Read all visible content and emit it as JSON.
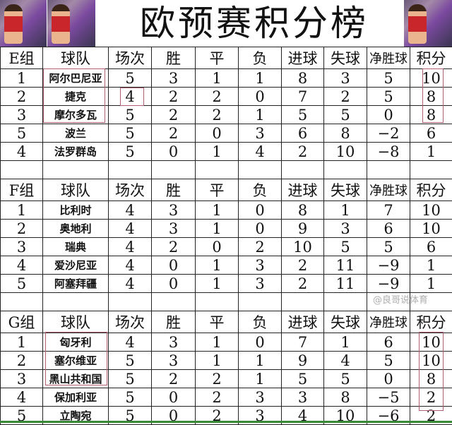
{
  "title": "欧预赛积分榜",
  "headers": [
    "球队",
    "场次",
    "胜",
    "平",
    "负",
    "进球",
    "失球",
    "净胜球",
    "积分"
  ],
  "groups": [
    {
      "name": "E组",
      "rows": [
        [
          "1",
          "阿尔巴尼亚",
          "5",
          "3",
          "1",
          "1",
          "8",
          "3",
          "5",
          "10"
        ],
        [
          "2",
          "捷克",
          "4",
          "2",
          "2",
          "0",
          "7",
          "2",
          "5",
          "8"
        ],
        [
          "3",
          "摩尔多瓦",
          "5",
          "2",
          "2",
          "1",
          "5",
          "5",
          "0",
          "8"
        ],
        [
          "5",
          "波兰",
          "5",
          "2",
          "0",
          "3",
          "6",
          "8",
          "−2",
          "6"
        ],
        [
          "4",
          "法罗群岛",
          "5",
          "0",
          "1",
          "4",
          "2",
          "10",
          "−8",
          "1"
        ]
      ]
    },
    {
      "name": "F组",
      "rows": [
        [
          "1",
          "比利时",
          "4",
          "3",
          "1",
          "0",
          "8",
          "1",
          "7",
          "10"
        ],
        [
          "2",
          "奥地利",
          "4",
          "3",
          "1",
          "0",
          "9",
          "3",
          "6",
          "10"
        ],
        [
          "3",
          "瑞典",
          "4",
          "2",
          "0",
          "2",
          "10",
          "5",
          "5",
          "6"
        ],
        [
          "4",
          "爱沙尼亚",
          "4",
          "0",
          "1",
          "3",
          "2",
          "11",
          "−9",
          "1"
        ],
        [
          "5",
          "阿塞拜疆",
          "4",
          "0",
          "1",
          "3",
          "2",
          "11",
          "−9",
          "1"
        ]
      ]
    },
    {
      "name": "G组",
      "rows": [
        [
          "1",
          "匈牙利",
          "4",
          "3",
          "1",
          "0",
          "7",
          "1",
          "6",
          "10"
        ],
        [
          "2",
          "塞尔维亚",
          "5",
          "3",
          "1",
          "1",
          "9",
          "4",
          "5",
          "10"
        ],
        [
          "3",
          "黑山共和国",
          "5",
          "2",
          "2",
          "1",
          "5",
          "5",
          "0",
          "8"
        ],
        [
          "4",
          "保加利亚",
          "5",
          "0",
          "2",
          "3",
          "3",
          "8",
          "−5",
          "2"
        ],
        [
          "5",
          "立陶宛",
          "5",
          "0",
          "2",
          "3",
          "4",
          "10",
          "−6",
          "2"
        ]
      ]
    }
  ],
  "watermark": "@良哥说体育",
  "colors": {
    "highlight_box": "#b06070",
    "bottom_line": "#3a8a3a"
  }
}
